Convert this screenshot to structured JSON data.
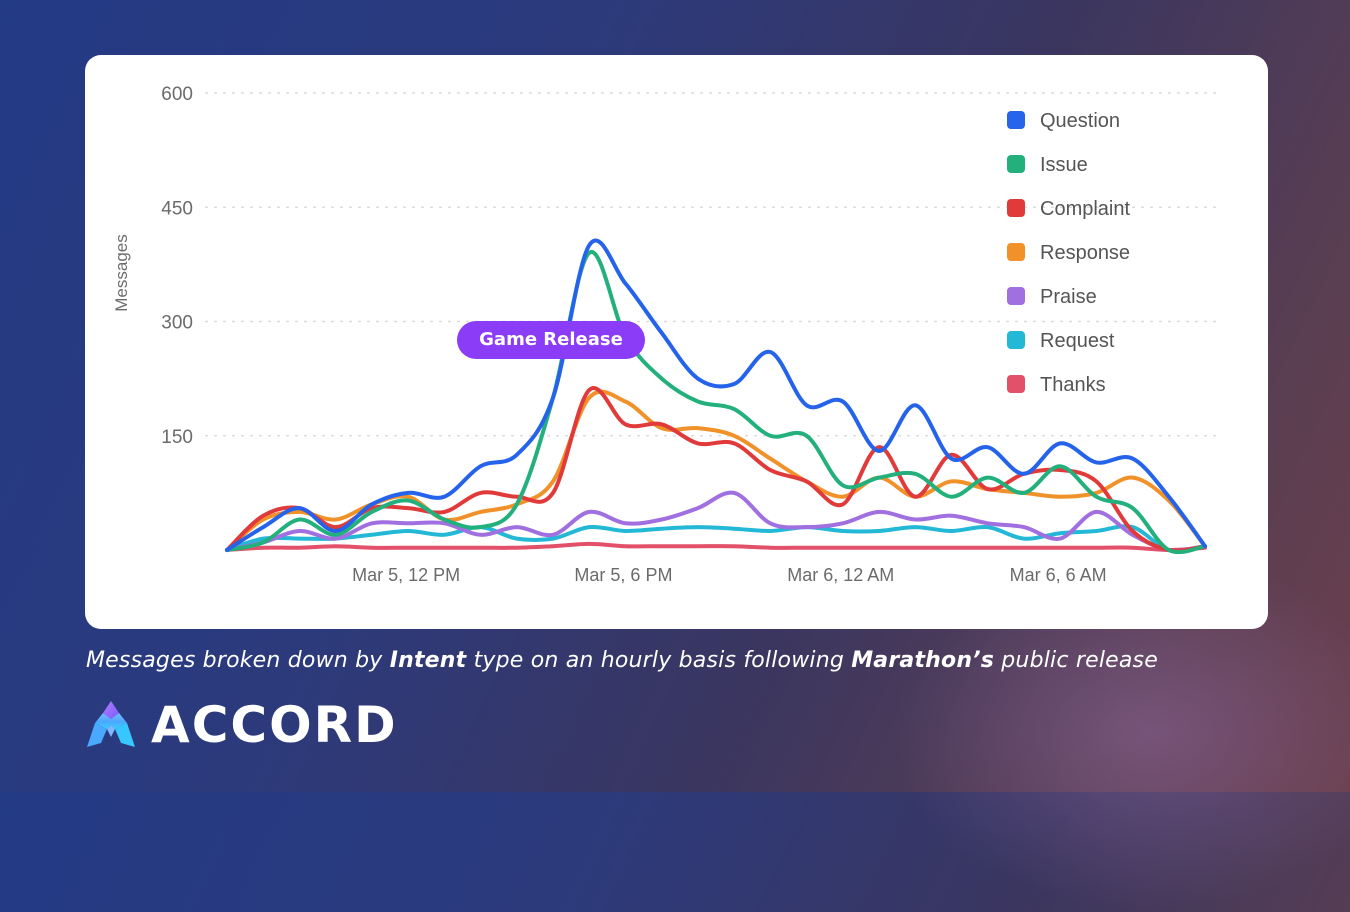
{
  "chart_data": {
    "type": "line",
    "ylabel": "Messages",
    "ylim": [
      0,
      600
    ],
    "yticks": [
      "600",
      "450",
      "300",
      "150"
    ],
    "xticks": [
      "Mar 5, 12 PM",
      "Mar 5, 6 PM",
      "Mar 6, 12 AM",
      "Mar 6, 6 AM"
    ],
    "annotation": "Game Release",
    "annotation_color": "#8b3cf6",
    "grid": true,
    "legend_position": "top-right",
    "x": [
      "Mar 5, 7 AM",
      "Mar 5, 8 AM",
      "Mar 5, 9 AM",
      "Mar 5, 10 AM",
      "Mar 5, 11 AM",
      "Mar 5, 12 PM",
      "Mar 5, 1 PM",
      "Mar 5, 2 PM",
      "Mar 5, 3 PM",
      "Mar 5, 4 PM",
      "Mar 5, 5 PM",
      "Mar 5, 6 PM",
      "Mar 5, 7 PM",
      "Mar 5, 8 PM",
      "Mar 5, 9 PM",
      "Mar 5, 10 PM",
      "Mar 5, 11 PM",
      "Mar 6, 12 AM",
      "Mar 6, 1 AM",
      "Mar 6, 2 AM",
      "Mar 6, 3 AM",
      "Mar 6, 4 AM",
      "Mar 6, 5 AM",
      "Mar 6, 6 AM",
      "Mar 6, 7 AM",
      "Mar 6, 8 AM",
      "Mar 6, 9 AM",
      "Mar 6, 10 AM"
    ],
    "series": [
      {
        "name": "Question",
        "color": "#2563eb",
        "values": [
          0,
          30,
          55,
          25,
          60,
          75,
          70,
          110,
          125,
          200,
          400,
          350,
          285,
          225,
          218,
          260,
          190,
          195,
          130,
          190,
          120,
          135,
          100,
          140,
          115,
          120,
          70,
          5
        ]
      },
      {
        "name": "Issue",
        "color": "#23b07d",
        "values": [
          0,
          10,
          40,
          20,
          50,
          65,
          40,
          30,
          60,
          200,
          390,
          280,
          225,
          195,
          185,
          150,
          150,
          85,
          95,
          100,
          70,
          95,
          75,
          110,
          70,
          55,
          0,
          5
        ]
      },
      {
        "name": "Complaint",
        "color": "#e03a3a",
        "values": [
          0,
          45,
          55,
          30,
          55,
          55,
          50,
          75,
          70,
          75,
          210,
          165,
          165,
          140,
          140,
          105,
          90,
          60,
          135,
          70,
          125,
          80,
          100,
          105,
          90,
          25,
          0,
          5
        ]
      },
      {
        "name": "Response",
        "color": "#f0912a",
        "values": [
          0,
          40,
          50,
          40,
          60,
          70,
          40,
          50,
          60,
          90,
          200,
          195,
          160,
          160,
          150,
          120,
          90,
          70,
          95,
          70,
          90,
          80,
          75,
          70,
          75,
          95,
          65,
          5
        ]
      },
      {
        "name": "Praise",
        "color": "#a06fe0",
        "values": [
          0,
          10,
          25,
          15,
          35,
          35,
          35,
          20,
          30,
          20,
          50,
          35,
          40,
          55,
          75,
          35,
          30,
          35,
          50,
          40,
          45,
          35,
          30,
          15,
          50,
          20,
          0,
          5
        ]
      },
      {
        "name": "Request",
        "color": "#22b8d6",
        "values": [
          0,
          15,
          15,
          15,
          20,
          25,
          20,
          30,
          15,
          15,
          30,
          25,
          28,
          30,
          28,
          25,
          30,
          25,
          25,
          30,
          25,
          30,
          15,
          22,
          25,
          30,
          0,
          5
        ]
      },
      {
        "name": "Thanks",
        "color": "#e2506a",
        "values": [
          0,
          3,
          3,
          5,
          3,
          3,
          3,
          3,
          3,
          5,
          8,
          5,
          5,
          5,
          5,
          3,
          3,
          3,
          3,
          3,
          3,
          3,
          3,
          3,
          3,
          3,
          0,
          3
        ]
      }
    ]
  },
  "caption": {
    "part1": "Messages broken down by ",
    "bold1": "Intent",
    "part2": " type on an hourly basis following ",
    "bold2": "Marathon’s",
    "part3": " public release"
  },
  "brand": {
    "name": "ACCORD"
  }
}
